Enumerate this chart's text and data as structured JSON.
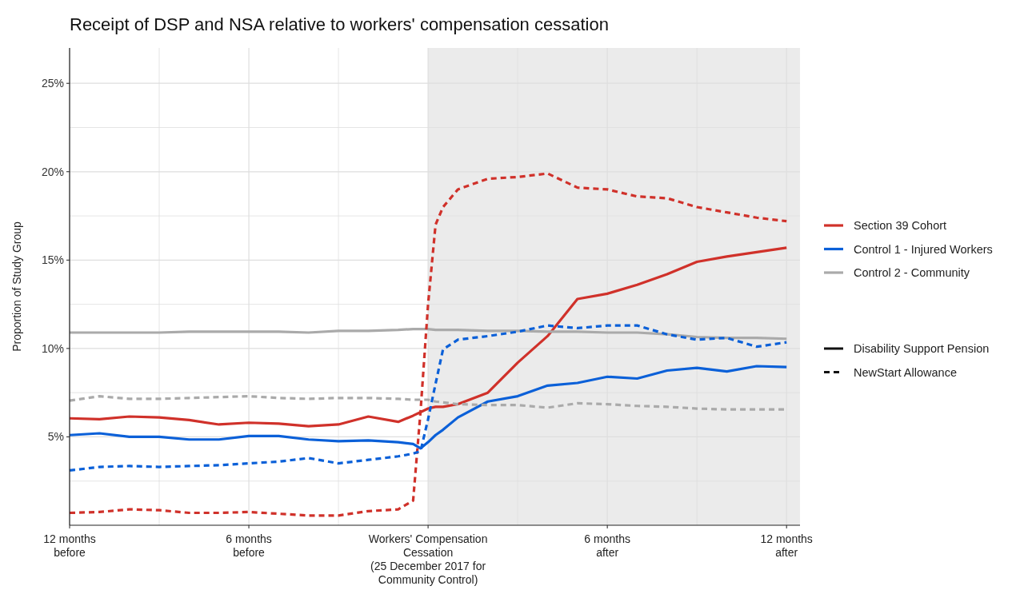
{
  "chart_data": {
    "type": "line",
    "title": "Receipt of DSP and NSA relative to workers' compensation cessation",
    "ylabel": "Proportion of Study Group",
    "x": [
      -12,
      -11,
      -10,
      -9,
      -8,
      -7,
      -6,
      -5,
      -4,
      -3,
      -2,
      -1,
      -0.5,
      -0.25,
      0,
      0.25,
      0.5,
      1,
      2,
      3,
      4,
      5,
      6,
      7,
      8,
      9,
      10,
      11,
      12
    ],
    "xlim": [
      -12,
      12.45
    ],
    "ylim": [
      0,
      27
    ],
    "xticks": [
      {
        "value": -12,
        "label": "12 months\nbefore"
      },
      {
        "value": -9,
        "label": null
      },
      {
        "value": -6,
        "label": "6 months\nbefore"
      },
      {
        "value": -3,
        "label": null
      },
      {
        "value": 0,
        "label": "Workers' Compensation\nCessation\n(25 December 2017 for\nCommunity Control)"
      },
      {
        "value": 3,
        "label": null
      },
      {
        "value": 6,
        "label": "6 months\nafter"
      },
      {
        "value": 9,
        "label": null
      },
      {
        "value": 12,
        "label": "12 months\nafter"
      }
    ],
    "yticks": [
      {
        "value": 2.5,
        "label": null
      },
      {
        "value": 5,
        "label": "5%"
      },
      {
        "value": 7.5,
        "label": null
      },
      {
        "value": 10,
        "label": "10%"
      },
      {
        "value": 12.5,
        "label": null
      },
      {
        "value": 15,
        "label": "15%"
      },
      {
        "value": 17.5,
        "label": null
      },
      {
        "value": 20,
        "label": "20%"
      },
      {
        "value": 22.5,
        "label": null
      },
      {
        "value": 25,
        "label": "25%"
      }
    ],
    "grid": true,
    "legend": "right",
    "bands": [
      {
        "axis": "x",
        "from": 0,
        "to": 12.45,
        "color": "#ebebeb"
      }
    ],
    "annotations": [
      "Disability Support Pension",
      "NewStart Allowance"
    ],
    "series": [
      {
        "name": "Section 39 Cohort",
        "color": "#d0312a",
        "line_style": "solid",
        "values": [
          6.05,
          6.0,
          6.15,
          6.1,
          5.95,
          5.7,
          5.8,
          5.75,
          5.6,
          5.7,
          6.15,
          5.85,
          6.2,
          6.4,
          6.6,
          6.7,
          6.7,
          6.85,
          7.5,
          9.2,
          10.7,
          12.8,
          13.1,
          13.6,
          14.2,
          14.9,
          15.2,
          15.45,
          15.7
        ]
      },
      {
        "name": "Control 1 - Injured Workers",
        "color": "#0b60d8",
        "line_style": "solid",
        "values": [
          5.1,
          5.2,
          5.0,
          5.0,
          4.85,
          4.85,
          5.05,
          5.05,
          4.85,
          4.75,
          4.8,
          4.7,
          4.6,
          4.35,
          4.7,
          5.1,
          5.4,
          6.1,
          7.0,
          7.3,
          7.9,
          8.05,
          8.4,
          8.3,
          8.75,
          8.9,
          8.7,
          9.0,
          8.95
        ]
      },
      {
        "name": "Control 2 - Community",
        "color": "#aaaaaa",
        "line_style": "solid",
        "values": [
          10.9,
          10.9,
          10.9,
          10.9,
          10.95,
          10.95,
          10.95,
          10.95,
          10.9,
          11.0,
          11.0,
          11.05,
          11.1,
          11.1,
          11.1,
          11.05,
          11.05,
          11.05,
          11.0,
          11.0,
          10.95,
          10.95,
          10.9,
          10.9,
          10.8,
          10.65,
          10.6,
          10.6,
          10.55
        ]
      },
      {
        "color": "#d0312a",
        "line_style": "dashed",
        "values": [
          0.7,
          0.75,
          0.9,
          0.85,
          0.7,
          0.7,
          0.75,
          0.65,
          0.55,
          0.55,
          0.8,
          0.9,
          1.4,
          6.5,
          12.5,
          17.0,
          18.0,
          19.0,
          19.6,
          19.7,
          19.9,
          19.1,
          19.0,
          18.6,
          18.5,
          18.0,
          17.7,
          17.4,
          17.2
        ]
      },
      {
        "color": "#0b60d8",
        "line_style": "dashed",
        "values": [
          3.1,
          3.3,
          3.35,
          3.3,
          3.35,
          3.4,
          3.5,
          3.6,
          3.8,
          3.5,
          3.7,
          3.9,
          4.05,
          4.2,
          6.0,
          8.0,
          9.95,
          10.5,
          10.7,
          10.95,
          11.3,
          11.15,
          11.3,
          11.3,
          10.8,
          10.5,
          10.6,
          10.1,
          10.35
        ]
      },
      {
        "color": "#aaaaaa",
        "line_style": "dashed",
        "values": [
          7.05,
          7.3,
          7.15,
          7.15,
          7.2,
          7.25,
          7.3,
          7.2,
          7.15,
          7.2,
          7.2,
          7.15,
          7.1,
          7.1,
          7.1,
          7.0,
          6.95,
          6.85,
          6.8,
          6.8,
          6.65,
          6.9,
          6.85,
          6.75,
          6.7,
          6.6,
          6.55,
          6.55,
          6.55
        ]
      }
    ]
  }
}
